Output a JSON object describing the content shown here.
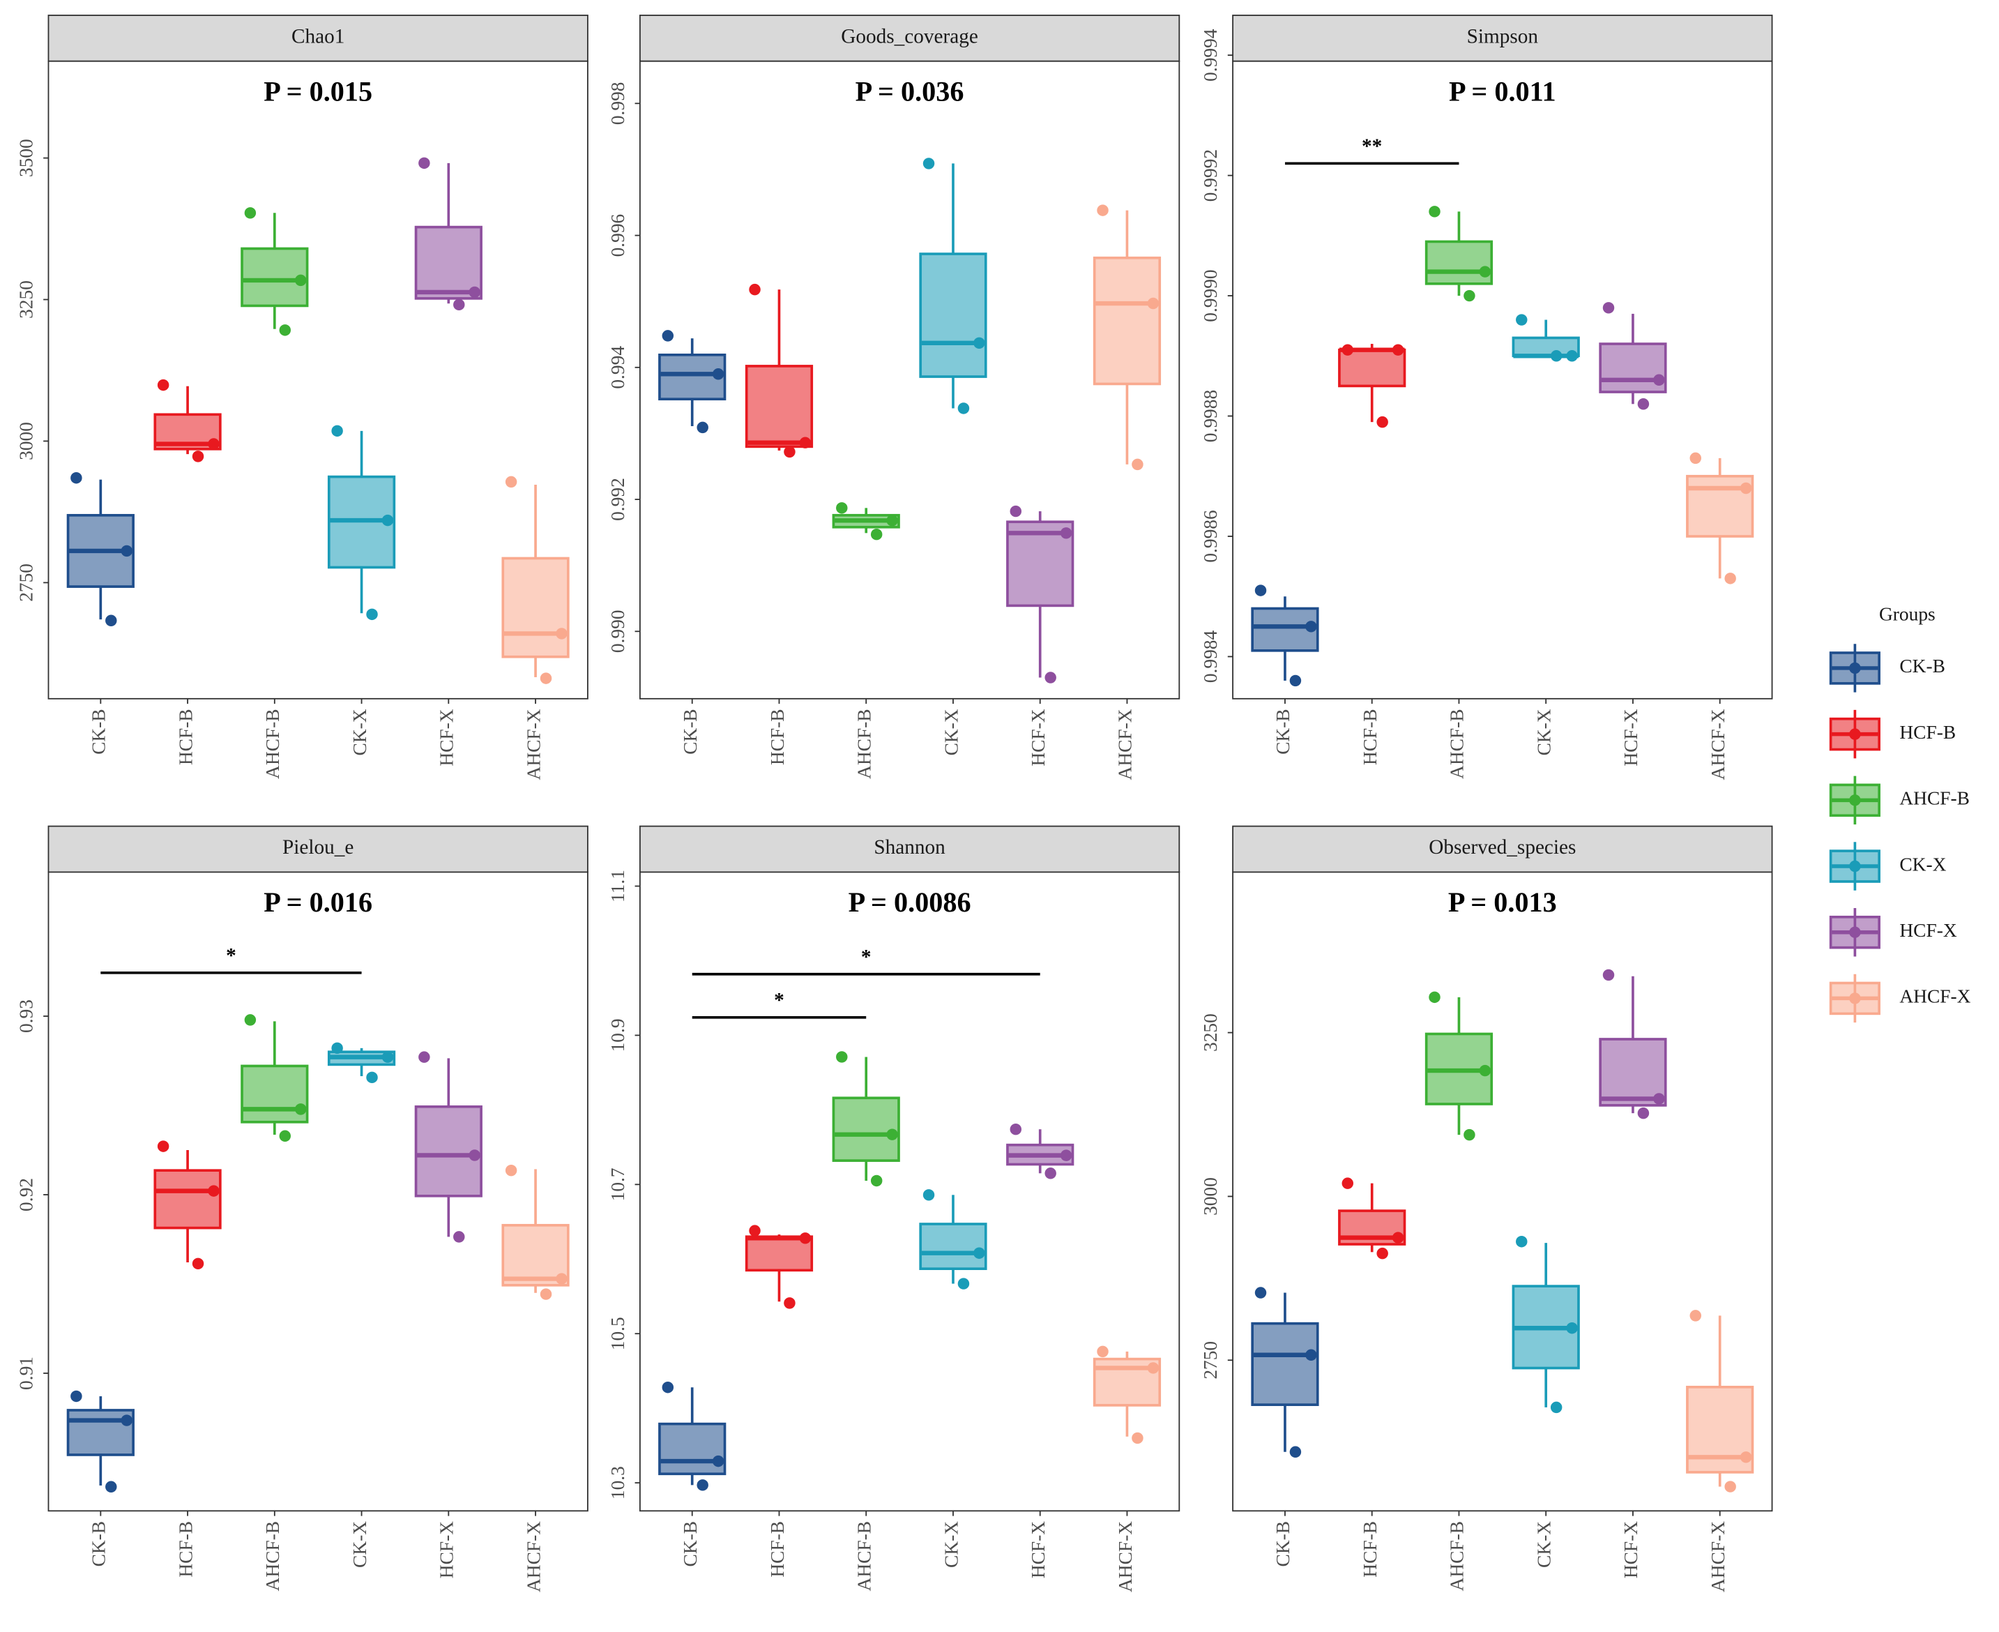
{
  "chart_data": [
    {
      "type": "box",
      "title": "Chao1",
      "annotation": "P = 0.015",
      "categories": [
        "CK-B",
        "HCF-B",
        "AHCF-B",
        "CK-X",
        "HCF-X",
        "AHCF-X"
      ],
      "colors": [
        "#1f4e8c",
        "#e8191f",
        "#3cb034",
        "#1a9cb8",
        "#8e4f9e",
        "#f9a98e"
      ],
      "boxes": [
        {
          "whisker_low": 2685,
          "q1": 2743,
          "median": 2806,
          "q3": 2869,
          "whisker_high": 2932,
          "points": [
            2935,
            2806,
            2683
          ]
        },
        {
          "whisker_low": 2977,
          "q1": 2986,
          "median": 2995,
          "q3": 3047,
          "whisker_high": 3097,
          "points": [
            3099,
            2995,
            2973
          ]
        },
        {
          "whisker_low": 3198,
          "q1": 3239,
          "median": 3284,
          "q3": 3340,
          "whisker_high": 3403,
          "points": [
            3403,
            3284,
            3196
          ]
        },
        {
          "whisker_low": 2696,
          "q1": 2777,
          "median": 2860,
          "q3": 2937,
          "whisker_high": 3018,
          "points": [
            3018,
            2860,
            2694
          ]
        },
        {
          "whisker_low": 3243,
          "q1": 3252,
          "median": 3263,
          "q3": 3378,
          "whisker_high": 3491,
          "points": [
            3491,
            3263,
            3241
          ]
        },
        {
          "whisker_low": 2583,
          "q1": 2619,
          "median": 2660,
          "q3": 2793,
          "whisker_high": 2923,
          "points": [
            2928,
            2660,
            2581
          ]
        }
      ],
      "ylim": [
        2545,
        3671
      ],
      "yticks": [
        2750,
        3000,
        3250,
        3500
      ],
      "brackets": []
    },
    {
      "type": "box",
      "title": "Goods_coverage",
      "annotation": "P = 0.036",
      "categories": [
        "CK-B",
        "HCF-B",
        "AHCF-B",
        "CK-X",
        "HCF-X",
        "AHCF-X"
      ],
      "colors": [
        "#1f4e8c",
        "#e8191f",
        "#3cb034",
        "#1a9cb8",
        "#8e4f9e",
        "#f9a98e"
      ],
      "boxes": [
        {
          "whisker_low": 0.99311,
          "q1": 0.99352,
          "median": 0.9939,
          "q3": 0.99419,
          "whisker_high": 0.99444,
          "points": [
            0.99448,
            0.9939,
            0.99309
          ]
        },
        {
          "whisker_low": 0.99274,
          "q1": 0.9928,
          "median": 0.99286,
          "q3": 0.99402,
          "whisker_high": 0.99518,
          "points": [
            0.99518,
            0.99286,
            0.99272
          ]
        },
        {
          "whisker_low": 0.99149,
          "q1": 0.99158,
          "median": 0.99168,
          "q3": 0.99176,
          "whisker_high": 0.99187,
          "points": [
            0.99187,
            0.99168,
            0.99147
          ]
        },
        {
          "whisker_low": 0.99338,
          "q1": 0.99386,
          "median": 0.99437,
          "q3": 0.99572,
          "whisker_high": 0.99709,
          "points": [
            0.99709,
            0.99437,
            0.99338
          ]
        },
        {
          "whisker_low": 0.9893,
          "q1": 0.99039,
          "median": 0.99149,
          "q3": 0.99166,
          "whisker_high": 0.99182,
          "points": [
            0.99182,
            0.99149,
            0.9893
          ]
        },
        {
          "whisker_low": 0.99253,
          "q1": 0.99375,
          "median": 0.99497,
          "q3": 0.99566,
          "whisker_high": 0.99638,
          "points": [
            0.99638,
            0.99497,
            0.99253
          ]
        }
      ],
      "ylim": [
        0.98898,
        0.99864
      ],
      "yticks": [
        {
          "value": 0.99,
          "label": "0.990"
        },
        0.992,
        0.994,
        0.996,
        0.998
      ],
      "brackets": []
    },
    {
      "type": "box",
      "title": "Simpson",
      "annotation": "P = 0.011",
      "categories": [
        "CK-B",
        "HCF-B",
        "AHCF-B",
        "CK-X",
        "HCF-X",
        "AHCF-X"
      ],
      "colors": [
        "#1f4e8c",
        "#e8191f",
        "#3cb034",
        "#1a9cb8",
        "#8e4f9e",
        "#f9a98e"
      ],
      "boxes": [
        {
          "whisker_low": 0.99836,
          "q1": 0.99841,
          "median": 0.99845,
          "q3": 0.99848,
          "whisker_high": 0.9985,
          "points": [
            0.99851,
            0.99845,
            0.99836
          ]
        },
        {
          "whisker_low": 0.99879,
          "q1": 0.99885,
          "median": 0.99891,
          "q3": 0.99891,
          "whisker_high": 0.99892,
          "points": [
            0.99891,
            0.99891,
            0.99879
          ]
        },
        {
          "whisker_low": 0.999,
          "q1": 0.99902,
          "median": 0.99904,
          "q3": 0.99909,
          "whisker_high": 0.99914,
          "points": [
            0.99914,
            0.99904,
            0.999
          ]
        },
        {
          "whisker_low": 0.9989,
          "q1": 0.9989,
          "median": 0.9989,
          "q3": 0.99893,
          "whisker_high": 0.99896,
          "points": [
            0.99896,
            0.9989,
            0.9989
          ]
        },
        {
          "whisker_low": 0.99882,
          "q1": 0.99884,
          "median": 0.99886,
          "q3": 0.99892,
          "whisker_high": 0.99897,
          "points": [
            0.99898,
            0.99886,
            0.99882
          ]
        },
        {
          "whisker_low": 0.99853,
          "q1": 0.9986,
          "median": 0.99868,
          "q3": 0.9987,
          "whisker_high": 0.99873,
          "points": [
            0.99873,
            0.99868,
            0.99853
          ]
        }
      ],
      "ylim": [
        0.99833,
        0.99939
      ],
      "yticks": [
        0.9984,
        0.9986,
        0.9988,
        {
          "value": 0.999,
          "label": "0.9990"
        },
        0.9992,
        0.9994
      ],
      "brackets": [
        {
          "x": [
            0,
            2
          ],
          "y": 0.99922,
          "label": "**"
        }
      ]
    },
    {
      "type": "box",
      "title": "Pielou_e",
      "annotation": "P = 0.016",
      "categories": [
        "CK-B",
        "HCF-B",
        "AHCF-B",
        "CK-X",
        "HCF-X",
        "AHCF-X"
      ],
      "colors": [
        "#1f4e8c",
        "#e8191f",
        "#3cb034",
        "#1a9cb8",
        "#8e4f9e",
        "#f9a98e"
      ],
      "boxes": [
        {
          "whisker_low": 0.90371,
          "q1": 0.90543,
          "median": 0.90736,
          "q3": 0.90793,
          "whisker_high": 0.90871,
          "points": [
            0.90871,
            0.90736,
            0.90364
          ]
        },
        {
          "whisker_low": 0.91621,
          "q1": 0.91814,
          "median": 0.92021,
          "q3": 0.92136,
          "whisker_high": 0.9225,
          "points": [
            0.92271,
            0.92021,
            0.91614
          ]
        },
        {
          "whisker_low": 0.92336,
          "q1": 0.92407,
          "median": 0.92479,
          "q3": 0.92721,
          "whisker_high": 0.92971,
          "points": [
            0.92979,
            0.92479,
            0.92329
          ]
        },
        {
          "whisker_low": 0.92664,
          "q1": 0.92729,
          "median": 0.92771,
          "q3": 0.928,
          "whisker_high": 0.92821,
          "points": [
            0.92821,
            0.92771,
            0.92657
          ]
        },
        {
          "whisker_low": 0.91764,
          "q1": 0.91993,
          "median": 0.92221,
          "q3": 0.92493,
          "whisker_high": 0.92764,
          "points": [
            0.92771,
            0.92221,
            0.91764
          ]
        },
        {
          "whisker_low": 0.9145,
          "q1": 0.91493,
          "median": 0.91529,
          "q3": 0.91829,
          "whisker_high": 0.92143,
          "points": [
            0.92136,
            0.91529,
            0.91443
          ]
        }
      ],
      "ylim": [
        0.90229,
        0.93807
      ],
      "yticks": [
        0.91,
        0.92,
        0.93
      ],
      "brackets": [
        {
          "x": [
            0,
            3
          ],
          "y": 0.93243,
          "label": "*"
        }
      ]
    },
    {
      "type": "box",
      "title": "Shannon",
      "annotation": "P = 0.0086",
      "categories": [
        "CK-B",
        "HCF-B",
        "AHCF-B",
        "CK-X",
        "HCF-X",
        "AHCF-X"
      ],
      "colors": [
        "#1f4e8c",
        "#e8191f",
        "#3cb034",
        "#1a9cb8",
        "#8e4f9e",
        "#f9a98e"
      ],
      "boxes": [
        {
          "whisker_low": 10.297,
          "q1": 10.312,
          "median": 10.329,
          "q3": 10.379,
          "whisker_high": 10.428,
          "points": [
            10.428,
            10.329,
            10.297
          ]
        },
        {
          "whisker_low": 10.543,
          "q1": 10.585,
          "median": 10.628,
          "q3": 10.63,
          "whisker_high": 10.633,
          "points": [
            10.638,
            10.628,
            10.541
          ]
        },
        {
          "whisker_low": 10.705,
          "q1": 10.732,
          "median": 10.767,
          "q3": 10.816,
          "whisker_high": 10.871,
          "points": [
            10.871,
            10.767,
            10.705
          ]
        },
        {
          "whisker_low": 10.567,
          "q1": 10.587,
          "median": 10.608,
          "q3": 10.647,
          "whisker_high": 10.686,
          "points": [
            10.686,
            10.608,
            10.567
          ]
        },
        {
          "whisker_low": 10.715,
          "q1": 10.727,
          "median": 10.739,
          "q3": 10.753,
          "whisker_high": 10.774,
          "points": [
            10.774,
            10.739,
            10.715
          ]
        },
        {
          "whisker_low": 10.362,
          "q1": 10.404,
          "median": 10.454,
          "q3": 10.466,
          "whisker_high": 10.476,
          "points": [
            10.476,
            10.454,
            10.36
          ]
        }
      ],
      "ylim": [
        10.2624,
        11.1188
      ],
      "yticks": [
        10.3,
        10.5,
        10.7,
        10.9,
        11.1
      ],
      "brackets": [
        {
          "x": [
            0,
            2
          ],
          "y": 10.924,
          "label": "*"
        },
        {
          "x": [
            0,
            4
          ],
          "y": 10.982,
          "label": "*"
        }
      ]
    },
    {
      "type": "box",
      "title": "Observed_species",
      "annotation": "P = 0.013",
      "categories": [
        "CK-B",
        "HCF-B",
        "AHCF-B",
        "CK-X",
        "HCF-X",
        "AHCF-X"
      ],
      "colors": [
        "#1f4e8c",
        "#e8191f",
        "#3cb034",
        "#1a9cb8",
        "#8e4f9e",
        "#f9a98e"
      ],
      "boxes": [
        {
          "whisker_low": 2610,
          "q1": 2682,
          "median": 2758,
          "q3": 2806,
          "whisker_high": 2853,
          "points": [
            2853,
            2758,
            2610
          ]
        },
        {
          "whisker_low": 2915,
          "q1": 2927,
          "median": 2937,
          "q3": 2978,
          "whisker_high": 3020,
          "points": [
            3020,
            2937,
            2913
          ]
        },
        {
          "whisker_low": 3094,
          "q1": 3141,
          "median": 3192,
          "q3": 3248,
          "whisker_high": 3304,
          "points": [
            3304,
            3192,
            3094
          ]
        },
        {
          "whisker_low": 2678,
          "q1": 2738,
          "median": 2799,
          "q3": 2863,
          "whisker_high": 2929,
          "points": [
            2931,
            2799,
            2678
          ]
        },
        {
          "whisker_low": 3127,
          "q1": 3139,
          "median": 3149,
          "q3": 3240,
          "whisker_high": 3336,
          "points": [
            3338,
            3149,
            3127
          ]
        },
        {
          "whisker_low": 2557,
          "q1": 2579,
          "median": 2602,
          "q3": 2709,
          "whisker_high": 2818,
          "points": [
            2818,
            2602,
            2557
          ]
        }
      ],
      "ylim": [
        2520,
        3495
      ],
      "yticks": [
        2750,
        3000,
        3250
      ],
      "brackets": []
    }
  ],
  "legend": {
    "title": "Groups",
    "entries": [
      "CK-B",
      "HCF-B",
      "AHCF-B",
      "CK-X",
      "HCF-X",
      "AHCF-X"
    ],
    "colors": [
      "#1f4e8c",
      "#e8191f",
      "#3cb034",
      "#1a9cb8",
      "#8e4f9e",
      "#f9a98e"
    ]
  }
}
